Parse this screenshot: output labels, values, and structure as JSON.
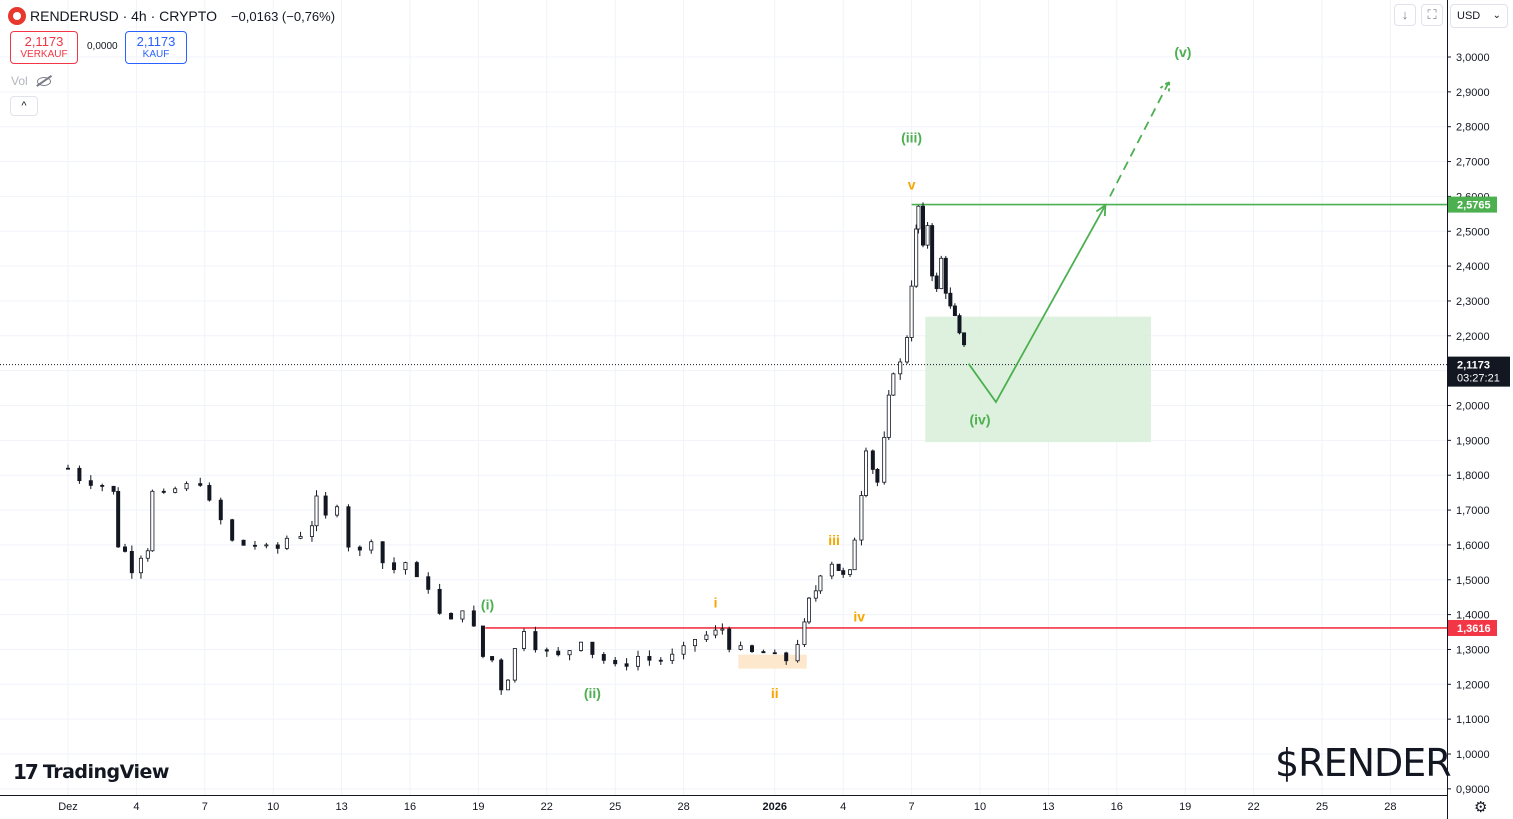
{
  "header": {
    "symbol_line": "RENDERUSD · 4h · CRYPTO",
    "change": "−0,0163 (−0,76%)",
    "sell_price": "2,1173",
    "sell_label": "VERKAUF",
    "spread": "0,0000",
    "buy_price": "2,1173",
    "buy_label": "KAUF",
    "vol_label": "Vol",
    "collapse_label": "^"
  },
  "toolbar": {
    "download_icon": "↓",
    "fullscreen_icon": "⛶",
    "currency": "USD",
    "currency_chevron": "⌄"
  },
  "branding": {
    "tv_mark": "17",
    "tv_name": "TradingView",
    "ticker_overlay": "$RENDER",
    "settings_icon": "⚙"
  },
  "colors": {
    "up_candle": "#131722",
    "down_candle": "#131722",
    "green_line": "#4caf50",
    "red_line": "#f23645",
    "orange_label": "#f7a600",
    "green_zone": "#d8eed8",
    "orange_zone": "#fde4c4"
  },
  "chart_data": {
    "type": "candlestick",
    "symbol": "RENDERUSD",
    "interval": "4h",
    "currency": "USD",
    "ylim": [
      0.9,
      3.05
    ],
    "y_ticks": [
      "0,9000",
      "1,0000",
      "1,1000",
      "1,2000",
      "1,3000",
      "1,4000",
      "1,5000",
      "1,6000",
      "1,7000",
      "1,8000",
      "1,9000",
      "2,0000",
      "2,1000",
      "2,2000",
      "2,3000",
      "2,4000",
      "2,5000",
      "2,6000",
      "2,7000",
      "2,8000",
      "2,9000",
      "3,0000"
    ],
    "x_ticks": [
      {
        "label": "Dez",
        "day": 0
      },
      {
        "label": "4",
        "day": 3
      },
      {
        "label": "7",
        "day": 6
      },
      {
        "label": "10",
        "day": 9
      },
      {
        "label": "13",
        "day": 12
      },
      {
        "label": "16",
        "day": 15
      },
      {
        "label": "19",
        "day": 18
      },
      {
        "label": "22",
        "day": 21
      },
      {
        "label": "25",
        "day": 24
      },
      {
        "label": "28",
        "day": 27
      },
      {
        "label": "2026",
        "day": 31,
        "bold": true
      },
      {
        "label": "4",
        "day": 34
      },
      {
        "label": "7",
        "day": 37
      },
      {
        "label": "10",
        "day": 40
      },
      {
        "label": "13",
        "day": 43
      },
      {
        "label": "16",
        "day": 46
      },
      {
        "label": "19",
        "day": 49
      },
      {
        "label": "22",
        "day": 52
      },
      {
        "label": "25",
        "day": 55
      },
      {
        "label": "28",
        "day": 58
      }
    ],
    "last_price": {
      "value": 2.1173,
      "label": "2,1173",
      "countdown": "03:27:21"
    },
    "price_levels": [
      {
        "value": 2.5765,
        "label": "2,5765",
        "color": "#4caf50",
        "from_day": 37.0
      },
      {
        "value": 1.3616,
        "label": "1,3616",
        "color": "#f23645",
        "from_day": 18.3
      }
    ],
    "closes": [
      {
        "day": 0.0,
        "close": 1.82
      },
      {
        "day": 0.5,
        "close": 1.79
      },
      {
        "day": 1.0,
        "close": 1.78
      },
      {
        "day": 1.5,
        "close": 1.77
      },
      {
        "day": 2.0,
        "close": 1.75
      },
      {
        "day": 2.2,
        "close": 1.6
      },
      {
        "day": 2.5,
        "close": 1.58
      },
      {
        "day": 2.8,
        "close": 1.53
      },
      {
        "day": 3.2,
        "close": 1.57
      },
      {
        "day": 3.5,
        "close": 1.59
      },
      {
        "day": 3.7,
        "close": 1.75
      },
      {
        "day": 4.2,
        "close": 1.74
      },
      {
        "day": 4.7,
        "close": 1.76
      },
      {
        "day": 5.2,
        "close": 1.77
      },
      {
        "day": 5.8,
        "close": 1.78
      },
      {
        "day": 6.2,
        "close": 1.72
      },
      {
        "day": 6.7,
        "close": 1.67
      },
      {
        "day": 7.2,
        "close": 1.61
      },
      {
        "day": 7.7,
        "close": 1.6
      },
      {
        "day": 8.2,
        "close": 1.6
      },
      {
        "day": 8.7,
        "close": 1.59
      },
      {
        "day": 9.2,
        "close": 1.59
      },
      {
        "day": 9.6,
        "close": 1.62
      },
      {
        "day": 10.2,
        "close": 1.63
      },
      {
        "day": 10.7,
        "close": 1.66
      },
      {
        "day": 10.9,
        "close": 1.73
      },
      {
        "day": 11.3,
        "close": 1.68
      },
      {
        "day": 11.8,
        "close": 1.72
      },
      {
        "day": 12.3,
        "close": 1.6
      },
      {
        "day": 12.8,
        "close": 1.58
      },
      {
        "day": 13.3,
        "close": 1.62
      },
      {
        "day": 13.8,
        "close": 1.55
      },
      {
        "day": 14.3,
        "close": 1.53
      },
      {
        "day": 14.8,
        "close": 1.55
      },
      {
        "day": 15.3,
        "close": 1.5
      },
      {
        "day": 15.8,
        "close": 1.48
      },
      {
        "day": 16.3,
        "close": 1.4
      },
      {
        "day": 16.8,
        "close": 1.38
      },
      {
        "day": 17.3,
        "close": 1.42
      },
      {
        "day": 17.8,
        "close": 1.36
      },
      {
        "day": 18.2,
        "close": 1.28
      },
      {
        "day": 18.6,
        "close": 1.27
      },
      {
        "day": 19.0,
        "close": 1.19
      },
      {
        "day": 19.3,
        "close": 1.22
      },
      {
        "day": 19.6,
        "close": 1.3
      },
      {
        "day": 20.0,
        "close": 1.36
      },
      {
        "day": 20.5,
        "close": 1.31
      },
      {
        "day": 21.0,
        "close": 1.29
      },
      {
        "day": 21.5,
        "close": 1.28
      },
      {
        "day": 22.0,
        "close": 1.3
      },
      {
        "day": 22.5,
        "close": 1.33
      },
      {
        "day": 23.0,
        "close": 1.29
      },
      {
        "day": 23.5,
        "close": 1.27
      },
      {
        "day": 24.0,
        "close": 1.25
      },
      {
        "day": 24.5,
        "close": 1.26
      },
      {
        "day": 25.0,
        "close": 1.28
      },
      {
        "day": 25.5,
        "close": 1.27
      },
      {
        "day": 26.0,
        "close": 1.27
      },
      {
        "day": 26.5,
        "close": 1.28
      },
      {
        "day": 27.0,
        "close": 1.3
      },
      {
        "day": 27.5,
        "close": 1.33
      },
      {
        "day": 28.0,
        "close": 1.34
      },
      {
        "day": 28.4,
        "close": 1.35
      },
      {
        "day": 28.7,
        "close": 1.36
      },
      {
        "day": 29.0,
        "close": 1.31
      },
      {
        "day": 29.5,
        "close": 1.3
      },
      {
        "day": 30.0,
        "close": 1.29
      },
      {
        "day": 30.5,
        "close": 1.29
      },
      {
        "day": 31.0,
        "close": 1.28
      },
      {
        "day": 31.5,
        "close": 1.27
      },
      {
        "day": 32.0,
        "close": 1.32
      },
      {
        "day": 32.3,
        "close": 1.37
      },
      {
        "day": 32.5,
        "close": 1.44
      },
      {
        "day": 32.8,
        "close": 1.47
      },
      {
        "day": 33.0,
        "close": 1.52
      },
      {
        "day": 33.5,
        "close": 1.55
      },
      {
        "day": 33.8,
        "close": 1.53
      },
      {
        "day": 34.0,
        "close": 1.51
      },
      {
        "day": 34.3,
        "close": 1.52
      },
      {
        "day": 34.5,
        "close": 1.62
      },
      {
        "day": 34.8,
        "close": 1.75
      },
      {
        "day": 35.0,
        "close": 1.88
      },
      {
        "day": 35.3,
        "close": 1.82
      },
      {
        "day": 35.5,
        "close": 1.78
      },
      {
        "day": 35.8,
        "close": 1.9
      },
      {
        "day": 36.0,
        "close": 2.02
      },
      {
        "day": 36.2,
        "close": 2.1
      },
      {
        "day": 36.5,
        "close": 2.12
      },
      {
        "day": 36.8,
        "close": 2.2
      },
      {
        "day": 37.0,
        "close": 2.35
      },
      {
        "day": 37.2,
        "close": 2.5
      },
      {
        "day": 37.3,
        "close": 2.57
      },
      {
        "day": 37.5,
        "close": 2.45
      },
      {
        "day": 37.7,
        "close": 2.52
      },
      {
        "day": 37.9,
        "close": 2.38
      },
      {
        "day": 38.1,
        "close": 2.33
      },
      {
        "day": 38.3,
        "close": 2.42
      },
      {
        "day": 38.5,
        "close": 2.33
      },
      {
        "day": 38.7,
        "close": 2.28
      },
      {
        "day": 38.9,
        "close": 2.25
      },
      {
        "day": 39.1,
        "close": 2.2
      },
      {
        "day": 39.3,
        "close": 2.18
      },
      {
        "day": 39.5,
        "close": 2.12
      }
    ],
    "elliott_labels": [
      {
        "text": "(i)",
        "color": "#4caf50",
        "day": 18.4,
        "price": 1.415
      },
      {
        "text": "(ii)",
        "color": "#4caf50",
        "day": 23.0,
        "price": 1.16
      },
      {
        "text": "(iii)",
        "color": "#4caf50",
        "day": 37.0,
        "price": 2.755
      },
      {
        "text": "(iv)",
        "color": "#4caf50",
        "day": 40.0,
        "price": 1.945
      },
      {
        "text": "(v)",
        "color": "#4caf50",
        "day": 48.9,
        "price": 3.0
      },
      {
        "text": "i",
        "color": "#f7a600",
        "day": 28.4,
        "price": 1.42
      },
      {
        "text": "ii",
        "color": "#f7a600",
        "day": 31.0,
        "price": 1.16
      },
      {
        "text": "iii",
        "color": "#f7a600",
        "day": 33.6,
        "price": 1.6
      },
      {
        "text": "iv",
        "color": "#f7a600",
        "day": 34.7,
        "price": 1.38
      },
      {
        "text": "v",
        "color": "#f7a600",
        "day": 37.0,
        "price": 2.62
      }
    ],
    "zones": [
      {
        "color": "#d8eed8",
        "from_day": 37.6,
        "to_day": 47.5,
        "top": 2.255,
        "bottom": 1.895
      },
      {
        "color": "#fde4c4",
        "from_day": 29.4,
        "to_day": 32.4,
        "top": 1.285,
        "bottom": 1.245
      }
    ],
    "projection": {
      "color": "#4caf50",
      "solid_path": [
        {
          "day": 39.5,
          "price": 2.12
        },
        {
          "day": 40.7,
          "price": 2.01
        },
        {
          "day": 45.5,
          "price": 2.575
        }
      ],
      "dashed_path": [
        {
          "day": 45.7,
          "price": 2.6
        },
        {
          "day": 48.3,
          "price": 2.93
        }
      ]
    }
  }
}
